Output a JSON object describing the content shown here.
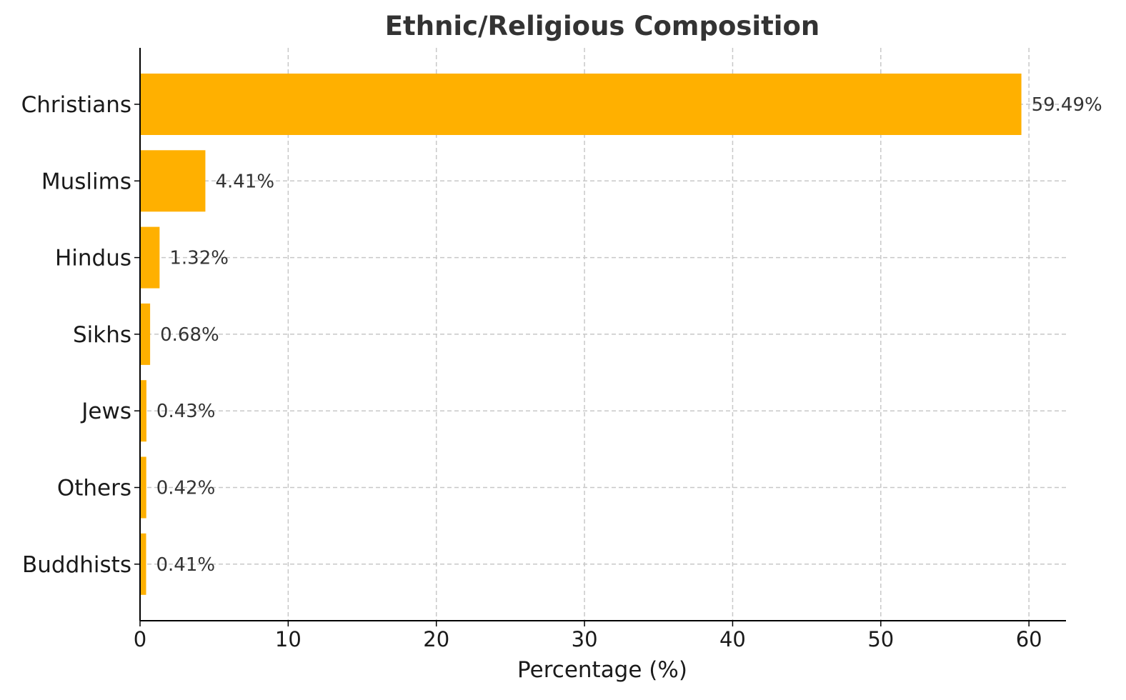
{
  "chart_data": {
    "type": "bar",
    "orientation": "horizontal",
    "title": "Ethnic/Religious Composition",
    "xlabel": "Percentage (%)",
    "ylabel": "",
    "categories": [
      "Christians",
      "Muslims",
      "Hindus",
      "Sikhs",
      "Jews",
      "Others",
      "Buddhists"
    ],
    "values": [
      59.49,
      4.41,
      1.32,
      0.68,
      0.43,
      0.42,
      0.41
    ],
    "data_labels": [
      "59.49%",
      "4.41%",
      "1.32%",
      "0.68%",
      "0.43%",
      "0.42%",
      "0.41%"
    ],
    "xlim": [
      0,
      62.5
    ],
    "xticks": [
      0,
      10,
      20,
      30,
      40,
      50,
      60
    ],
    "xtick_labels": [
      "0",
      "10",
      "20",
      "30",
      "40",
      "50",
      "60"
    ],
    "grid": true,
    "bar_color": "#FFB000"
  }
}
